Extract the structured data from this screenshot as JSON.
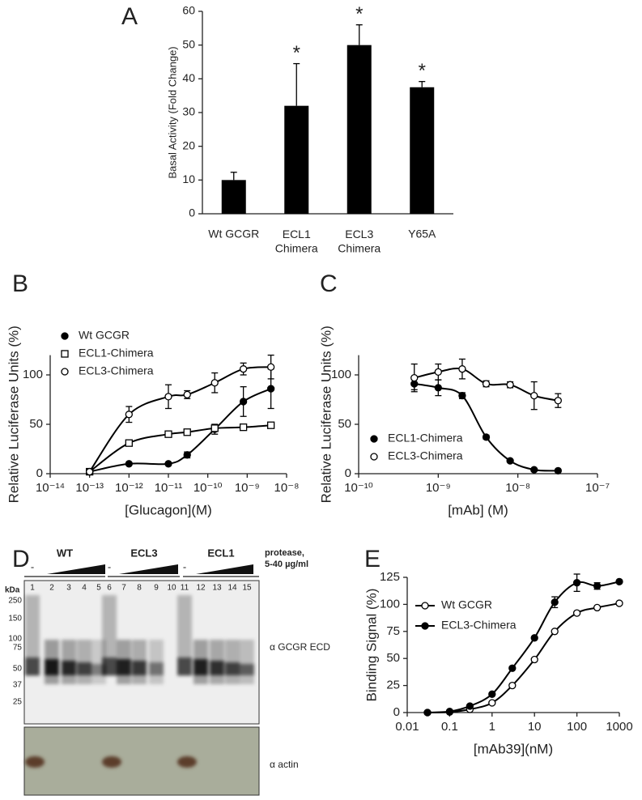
{
  "chart_data": [
    {
      "type": "bar",
      "panel": "A",
      "ylabel": "Basal Activity (Fold Change)",
      "categories": [
        "Wt GCGR",
        "ECL1\nChimera",
        "ECL3\nChimera",
        "Y65A"
      ],
      "values": [
        10,
        32,
        50,
        37.5
      ],
      "errors": [
        2.3,
        12.5,
        6,
        1.7
      ],
      "annotations": [
        null,
        "*",
        "*",
        "*"
      ],
      "color": "#000000",
      "ylim": [
        0,
        60
      ],
      "yticks": [
        0,
        10,
        20,
        30,
        40,
        50,
        60
      ]
    },
    {
      "type": "scatter",
      "panel": "B",
      "xlabel": "[Glucagon](M)",
      "ylabel": "Relative Luciferase Units (%)",
      "xscale": "log",
      "x": [
        1e-13,
        1e-12,
        1e-11,
        3e-11,
        1.5e-10,
        8e-10,
        4e-09
      ],
      "series": [
        {
          "name": "Wt GCGR",
          "color": "#000000",
          "marker": "circle-filled",
          "values": [
            2,
            10,
            10,
            19,
            45,
            73,
            86
          ],
          "errors": [
            null,
            null,
            null,
            3,
            5,
            15,
            20
          ]
        },
        {
          "name": "ECL1-Chimera",
          "color": "#000000",
          "marker": "square-open",
          "values": [
            2,
            31,
            40,
            42,
            46,
            47,
            49
          ],
          "errors": [
            null,
            null,
            null,
            null,
            null,
            null,
            null
          ]
        },
        {
          "name": "ECL3-Chimera",
          "color": "#000000",
          "marker": "circle-open",
          "values": [
            2,
            60,
            78,
            80,
            92,
            106,
            108
          ],
          "errors": [
            null,
            8,
            12,
            4,
            10,
            6,
            12
          ]
        }
      ],
      "xlim": [
        1e-14,
        1e-08
      ],
      "xticks": [
        {
          "value": 1e-14,
          "label": "10⁻¹⁴"
        },
        {
          "value": 1e-13,
          "label": "10⁻¹³"
        },
        {
          "value": 1e-12,
          "label": "10⁻¹²"
        },
        {
          "value": 1e-11,
          "label": "10⁻¹¹"
        },
        {
          "value": 1e-10,
          "label": "10⁻¹⁰"
        },
        {
          "value": 1e-09,
          "label": "10⁻⁹"
        },
        {
          "value": 1e-08,
          "label": "10⁻⁸"
        }
      ],
      "ylim": [
        0,
        120
      ],
      "yticks": [
        0,
        50,
        100
      ],
      "legend": "upper-left"
    },
    {
      "type": "scatter",
      "panel": "C",
      "xlabel": "[mAb] (M)",
      "ylabel": "Relative Luciferase Units (%)",
      "xscale": "log",
      "x": [
        5e-10,
        1e-09,
        2e-09,
        4e-09,
        8e-09,
        1.6e-08,
        3.2e-08
      ],
      "series": [
        {
          "name": "ECL1-Chimera",
          "color": "#000000",
          "marker": "circle-filled",
          "values": [
            91,
            87,
            79,
            37,
            13,
            4,
            3
          ],
          "errors": [
            6,
            8,
            3,
            2,
            null,
            null,
            null
          ]
        },
        {
          "name": "ECL3-Chimera",
          "color": "#000000",
          "marker": "circle-open",
          "values": [
            97,
            103,
            106,
            91,
            90,
            79,
            74
          ],
          "errors": [
            14,
            8,
            10,
            3,
            3,
            14,
            7
          ]
        }
      ],
      "xlim": [
        1e-10,
        1e-07
      ],
      "xticks": [
        {
          "value": 1e-10,
          "label": "10⁻¹⁰"
        },
        {
          "value": 1e-09,
          "label": "10⁻⁹"
        },
        {
          "value": 1e-08,
          "label": "10⁻⁸"
        },
        {
          "value": 1e-07,
          "label": "10⁻⁷"
        }
      ],
      "ylim": [
        0,
        120
      ],
      "yticks": [
        0,
        50,
        100
      ],
      "legend": "lower-left"
    },
    {
      "type": "scatter",
      "panel": "E",
      "xlabel": "[mAb39](nM)",
      "ylabel": "Binding Signal (%)",
      "xscale": "log",
      "x": [
        0.03,
        0.1,
        0.3,
        1,
        3,
        10,
        30,
        100,
        300,
        1000
      ],
      "series": [
        {
          "name": "Wt GCGR",
          "color": "#000000",
          "marker": "circle-open",
          "values": [
            0,
            0.5,
            3,
            9,
            25,
            49,
            75,
            92,
            97,
            101
          ],
          "errors": [
            null,
            null,
            null,
            null,
            null,
            null,
            null,
            null,
            null,
            null
          ]
        },
        {
          "name": "ECL3-Chimera",
          "color": "#000000",
          "marker": "circle-filled",
          "values": [
            0,
            1,
            6,
            17,
            41,
            69,
            102,
            120,
            117,
            121
          ],
          "errors": [
            null,
            null,
            null,
            null,
            null,
            null,
            5,
            8,
            3,
            null
          ]
        }
      ],
      "xlim": [
        0.01,
        1000
      ],
      "xticks": [
        0.01,
        0.1,
        1,
        10,
        100,
        1000
      ],
      "ylim": [
        0,
        125
      ],
      "yticks": [
        0,
        25,
        50,
        75,
        100,
        125
      ],
      "legend": "upper-left"
    }
  ],
  "blot": {
    "panel": "D",
    "groups": [
      "WT",
      "ECL3",
      "ECL1"
    ],
    "untreated": [
      "-",
      "-",
      "-"
    ],
    "protease": "protease,\n5-40 µg/ml",
    "kda": "kDa",
    "lanes": [
      "1",
      "2",
      "3",
      "4",
      "5",
      "6",
      "7",
      "8",
      "9",
      "10",
      "11",
      "12",
      "13",
      "14",
      "15"
    ],
    "markers": [
      "250",
      "150",
      "100",
      "75",
      "50",
      "37",
      "25"
    ],
    "antibodies": [
      "α GCGR ECD",
      "α actin"
    ]
  }
}
